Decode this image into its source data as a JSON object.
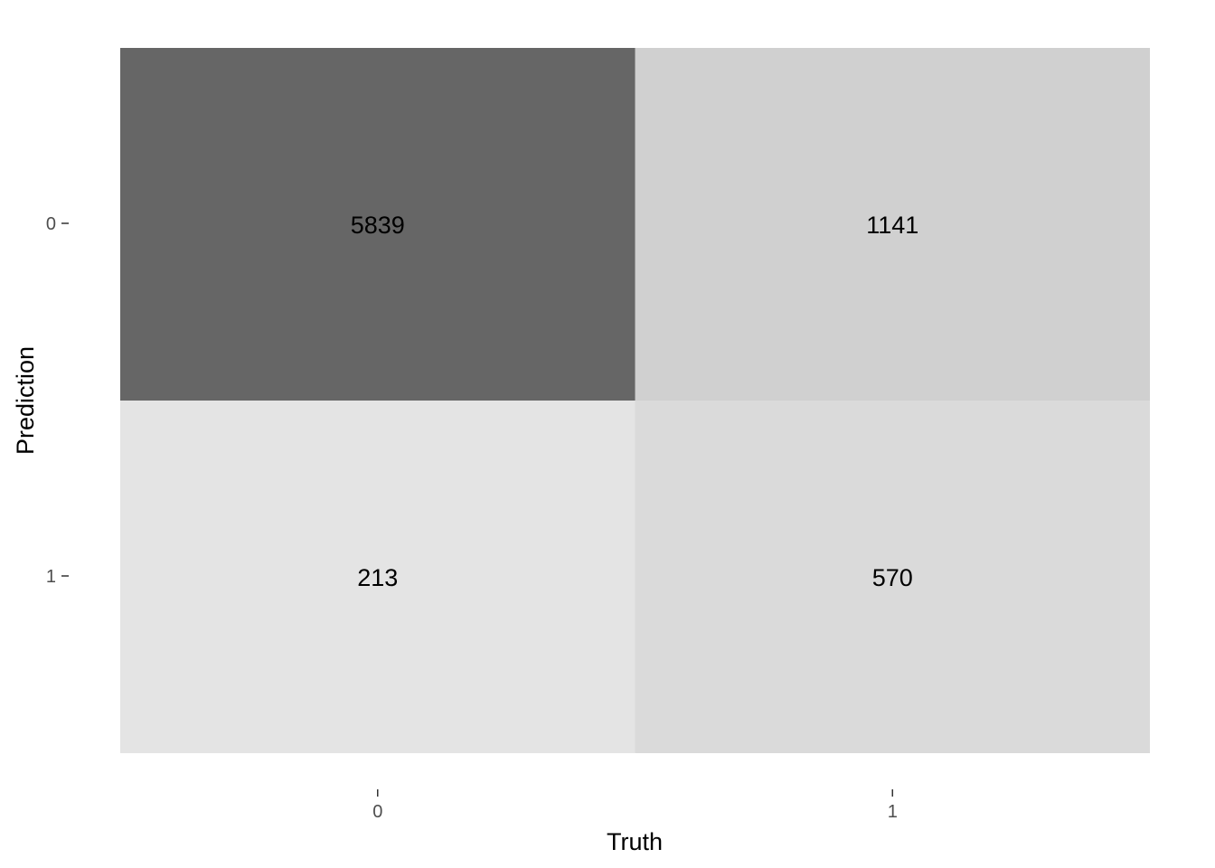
{
  "chart_data": {
    "type": "heatmap",
    "xlabel": "Truth",
    "ylabel": "Prediction",
    "x_categories": [
      "0",
      "1"
    ],
    "y_categories": [
      "0",
      "1"
    ],
    "cells": [
      {
        "truth": "0",
        "prediction": "0",
        "value": 5839,
        "color": "#666666"
      },
      {
        "truth": "1",
        "prediction": "0",
        "value": 1141,
        "color": "#d0d0d0"
      },
      {
        "truth": "0",
        "prediction": "1",
        "value": 213,
        "color": "#e4e4e4"
      },
      {
        "truth": "1",
        "prediction": "1",
        "value": 570,
        "color": "#dadada"
      }
    ],
    "grid": false,
    "legend": "none"
  }
}
